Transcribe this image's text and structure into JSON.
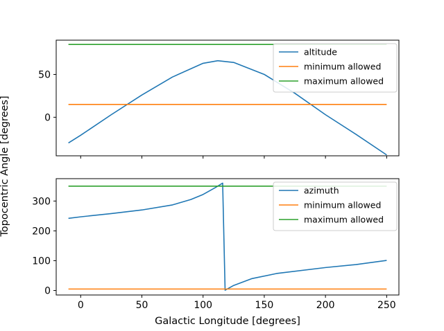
{
  "chart_data": {
    "type": "line",
    "shared_xlabel": "Galactic Longitude [degrees]",
    "shared_ylabel": "Topocentric Angle [degrees]",
    "xlim": [
      -20,
      260
    ],
    "xticks": [
      0,
      50,
      100,
      150,
      200,
      250
    ],
    "panels": [
      {
        "id": "altitude-panel",
        "ylim": [
          -45,
          90
        ],
        "yticks": [
          0,
          50
        ],
        "show_xticklabels": false,
        "legend_placement": "upper-right",
        "series": [
          {
            "name": "altitude",
            "color": "#1f77b4",
            "points": [
              [
                -10,
                -30
              ],
              [
                0,
                -21
              ],
              [
                25,
                3
              ],
              [
                50,
                26
              ],
              [
                75,
                47
              ],
              [
                100,
                63
              ],
              [
                112,
                66
              ],
              [
                125,
                64
              ],
              [
                150,
                50
              ],
              [
                175,
                28
              ],
              [
                200,
                3
              ],
              [
                225,
                -20
              ],
              [
                250,
                -44
              ]
            ]
          },
          {
            "name": "minimum allowed",
            "color": "#ff7f0e",
            "points": [
              [
                -10,
                15
              ],
              [
                250,
                15
              ]
            ]
          },
          {
            "name": "maximum allowed",
            "color": "#2ca02c",
            "points": [
              [
                -10,
                85
              ],
              [
                250,
                85
              ]
            ]
          }
        ]
      },
      {
        "id": "azimuth-panel",
        "ylim": [
          -15,
          375
        ],
        "yticks": [
          0,
          100,
          200,
          300
        ],
        "show_xticklabels": true,
        "legend_placement": "upper-right",
        "series": [
          {
            "name": "azimuth",
            "color": "#1f77b4",
            "points": [
              [
                -10,
                242
              ],
              [
                0,
                247
              ],
              [
                25,
                258
              ],
              [
                50,
                270
              ],
              [
                75,
                287
              ],
              [
                90,
                305
              ],
              [
                100,
                322
              ],
              [
                110,
                345
              ],
              [
                116,
                360
              ],
              [
                118,
                1
              ],
              [
                125,
                17
              ],
              [
                140,
                40
              ],
              [
                160,
                57
              ],
              [
                200,
                77
              ],
              [
                225,
                87
              ],
              [
                250,
                101
              ]
            ]
          },
          {
            "name": "minimum allowed",
            "color": "#ff7f0e",
            "points": [
              [
                -10,
                5
              ],
              [
                250,
                5
              ]
            ]
          },
          {
            "name": "maximum allowed",
            "color": "#2ca02c",
            "points": [
              [
                -10,
                350
              ],
              [
                250,
                350
              ]
            ]
          }
        ]
      }
    ]
  }
}
